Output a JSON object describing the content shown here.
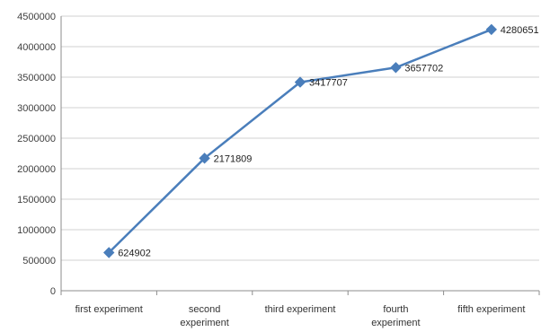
{
  "chart_data": {
    "type": "line",
    "title": "",
    "xlabel": "",
    "ylabel": "",
    "categories": [
      "first experiment",
      "second experiment",
      "third experiment",
      "fourth experiment",
      "fifth experiment"
    ],
    "category_lines": [
      [
        "first experiment"
      ],
      [
        "second",
        "experiment"
      ],
      [
        "third experiment"
      ],
      [
        "fourth",
        "experiment"
      ],
      [
        "fifth experiment"
      ]
    ],
    "series": [
      {
        "values": [
          624902,
          2171809,
          3417707,
          3657702,
          4280651
        ]
      }
    ],
    "data_labels": [
      "624902",
      "2171809",
      "3417707",
      "3657702",
      "4280651"
    ],
    "ylim": [
      0,
      4500000
    ],
    "y_ticks": [
      0,
      500000,
      1000000,
      1500000,
      2000000,
      2500000,
      3000000,
      3500000,
      4000000,
      4500000
    ],
    "y_tick_labels": [
      "0",
      "500000",
      "1000000",
      "1500000",
      "2000000",
      "2500000",
      "3000000",
      "3500000",
      "4000000",
      "4500000"
    ],
    "grid": true,
    "legend": "none",
    "marker": "diamond",
    "colors": {
      "line": "#4a7ebb",
      "marker": "#4a7ebb",
      "grid": "#d0d0d0",
      "axis": "#8c8c8c"
    }
  }
}
